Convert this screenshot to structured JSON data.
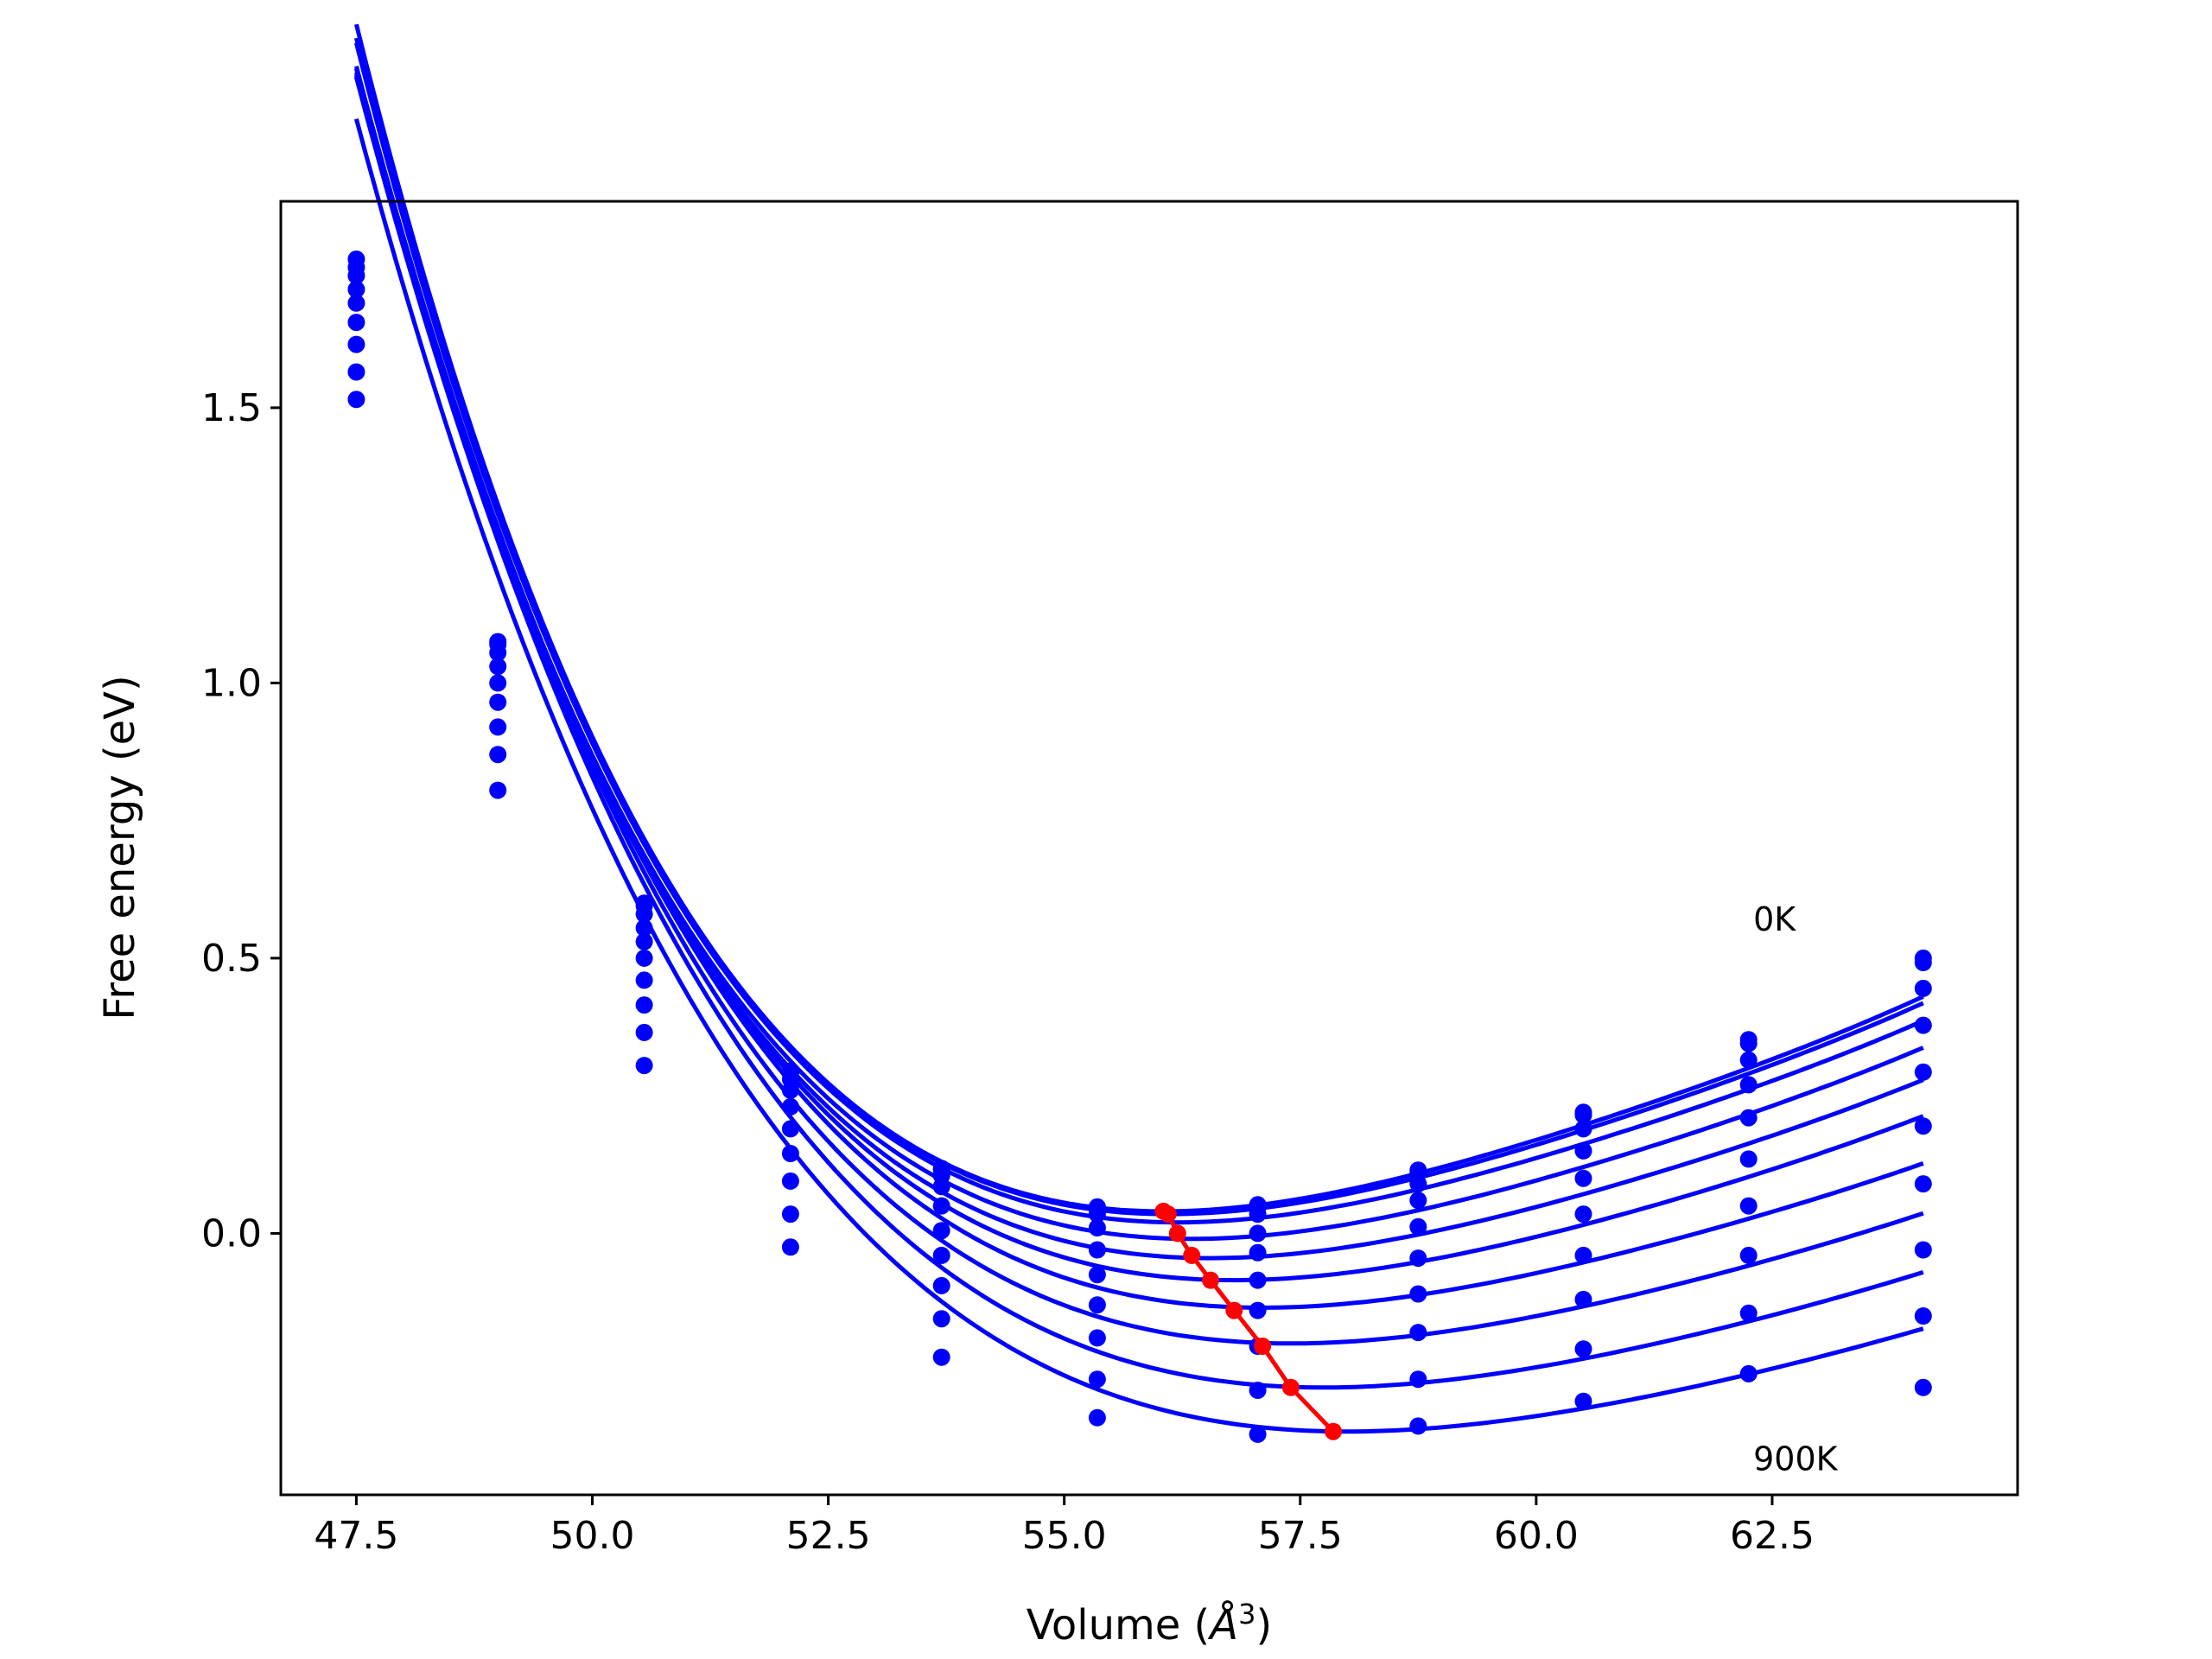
{
  "chart_data": {
    "type": "line",
    "title": "",
    "xlabel": "Volume",
    "xlabel_unit_base": "Å",
    "xlabel_unit_exp": "3",
    "ylabel": "Free energy (eV)",
    "xlim": [
      46.7,
      65.1
    ],
    "ylim": [
      -0.475,
      1.875
    ],
    "xticks": [
      47.5,
      50.0,
      52.5,
      55.0,
      57.5,
      60.0,
      62.5
    ],
    "xtick_labels": [
      "47.5",
      "50.0",
      "52.5",
      "55.0",
      "57.5",
      "60.0",
      "62.5"
    ],
    "yticks": [
      0.0,
      0.5,
      1.0,
      1.5
    ],
    "ytick_labels": [
      "0.0",
      "0.5",
      "1.0",
      "1.5"
    ],
    "grid": false,
    "annotations": [
      {
        "text": "0K",
        "x": 62.3,
        "y": 0.55
      },
      {
        "text": "900K",
        "x": 62.3,
        "y": -0.43
      }
    ],
    "point_x": [
      47.5,
      49.0,
      50.55,
      52.1,
      53.7,
      55.35,
      57.05,
      58.75,
      60.5,
      62.25,
      64.1
    ],
    "series": [
      {
        "color": "#0000ff",
        "points": [
          1.77,
          1.075,
          0.6,
          0.295,
          0.118,
          0.048,
          0.052,
          0.115,
          0.22,
          0.352,
          0.5
        ],
        "fit": {
          "v0": 56.05,
          "e0": 0.04,
          "a": 0.0127,
          "b": -0.00138,
          "c": 6.84e-05
        }
      },
      {
        "color": "#0000ff",
        "points": [
          1.755,
          1.07,
          0.595,
          0.29,
          0.115,
          0.045,
          0.048,
          0.11,
          0.215,
          0.345,
          0.492
        ],
        "fit": {
          "v0": 56.1,
          "e0": 0.035,
          "a": 0.0125,
          "b": -0.00134,
          "c": 6.58e-05
        }
      },
      {
        "color": "#0000ff",
        "points": [
          1.74,
          1.055,
          0.58,
          0.28,
          0.105,
          0.035,
          0.035,
          0.09,
          0.19,
          0.315,
          0.445
        ],
        "fit": {
          "v0": 56.2,
          "e0": 0.02,
          "a": 0.0121,
          "b": -0.0013,
          "c": 6.47e-05
        }
      },
      {
        "color": "#0000ff",
        "points": [
          1.715,
          1.03,
          0.555,
          0.26,
          0.085,
          0.01,
          0.0,
          0.06,
          0.15,
          0.27,
          0.378
        ],
        "fit": {
          "v0": 56.35,
          "e0": -0.01,
          "a": 0.0116,
          "b": -0.00122,
          "c": 6.06e-05
        }
      },
      {
        "color": "#0000ff",
        "points": [
          1.69,
          1.0,
          0.53,
          0.23,
          0.05,
          -0.03,
          -0.035,
          0.012,
          0.1,
          0.21,
          0.293
        ],
        "fit": {
          "v0": 56.55,
          "e0": -0.045,
          "a": 0.0111,
          "b": -0.00115,
          "c": 5.73e-05
        }
      },
      {
        "color": "#0000ff",
        "points": [
          1.655,
          0.965,
          0.5,
          0.19,
          0.005,
          -0.075,
          -0.085,
          -0.045,
          0.035,
          0.135,
          0.195
        ],
        "fit": {
          "v0": 56.8,
          "e0": -0.085,
          "a": 0.0106,
          "b": -0.00108,
          "c": 5.4e-05
        }
      },
      {
        "color": "#0000ff",
        "points": [
          1.615,
          0.92,
          0.46,
          0.145,
          -0.04,
          -0.13,
          -0.14,
          -0.11,
          -0.04,
          0.05,
          0.09
        ],
        "fit": {
          "v0": 57.1,
          "e0": -0.135,
          "a": 0.01,
          "b": -0.00102,
          "c": 5.08e-05
        }
      },
      {
        "color": "#0000ff",
        "points": [
          1.565,
          0.87,
          0.415,
          0.095,
          -0.095,
          -0.19,
          -0.205,
          -0.18,
          -0.12,
          -0.04,
          -0.03
        ],
        "fit": {
          "v0": 57.4,
          "e0": -0.2,
          "a": 0.0095,
          "b": -0.00095,
          "c": 4.75e-05
        }
      },
      {
        "color": "#0000ff",
        "points": [
          1.515,
          0.805,
          0.365,
          0.035,
          -0.155,
          -0.265,
          -0.285,
          -0.265,
          -0.21,
          -0.145,
          -0.15
        ],
        "fit": {
          "v0": 57.75,
          "e0": -0.28,
          "a": 0.009,
          "b": -0.00088,
          "c": 4.42e-05
        }
      },
      {
        "color": "#0000ff",
        "points": [
          null,
          null,
          0.305,
          -0.025,
          -0.225,
          -0.335,
          -0.365,
          -0.35,
          -0.305,
          -0.255,
          -0.28
        ],
        "fit": {
          "v0": 58.0,
          "e0": -0.36,
          "a": 0.0085,
          "b": -0.00082,
          "c": 4.1e-05
        }
      }
    ],
    "minimum_line": {
      "color": "#ff0000",
      "x": [
        56.05,
        56.1,
        56.2,
        56.35,
        56.55,
        56.8,
        57.1,
        57.4,
        57.85
      ],
      "y": [
        0.04,
        0.035,
        0.0,
        -0.04,
        -0.085,
        -0.14,
        -0.205,
        -0.28,
        -0.36
      ]
    }
  }
}
